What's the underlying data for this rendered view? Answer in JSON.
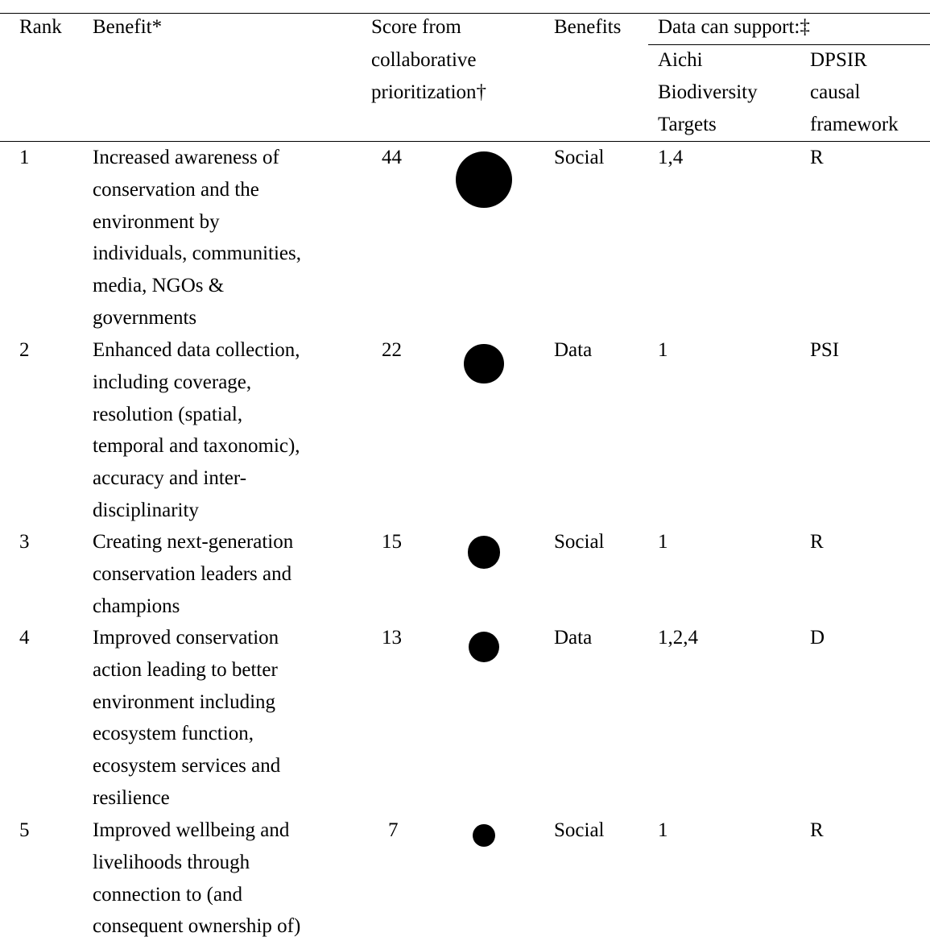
{
  "table": {
    "headers": {
      "rank": "Rank",
      "benefit": "Benefit*",
      "score": [
        "Score from",
        "collaborative",
        "prioritization†"
      ],
      "benefits": "Benefits",
      "support_group": "Data can support:‡",
      "aichi": [
        "Aichi",
        "Biodiversity",
        "Targets"
      ],
      "dpsir": [
        "DPSIR",
        "causal",
        "framework"
      ]
    },
    "rows": [
      {
        "rank": "1",
        "benefit": [
          "Increased awareness of",
          "conservation and the",
          "environment by",
          "individuals, communities,",
          "media, NGOs &",
          "governments"
        ],
        "score": 44,
        "benefits": "Social",
        "aichi": "1,4",
        "dpsir": "R"
      },
      {
        "rank": "2",
        "benefit": [
          "Enhanced data collection,",
          "including coverage,",
          "resolution (spatial,",
          "temporal and taxonomic),",
          "accuracy and inter-",
          "disciplinarity"
        ],
        "score": 22,
        "benefits": "Data",
        "aichi": "1",
        "dpsir": "PSI"
      },
      {
        "rank": "3",
        "benefit": [
          "Creating next-generation",
          "conservation leaders and",
          "champions"
        ],
        "score": 15,
        "benefits": "Social",
        "aichi": "1",
        "dpsir": "R"
      },
      {
        "rank": "4",
        "benefit": [
          "Improved conservation",
          "action leading to better",
          "environment including",
          "ecosystem function,",
          "ecosystem services and",
          "resilience"
        ],
        "score": 13,
        "benefits": "Data",
        "aichi": "1,2,4",
        "dpsir": "D"
      },
      {
        "rank": "5",
        "benefit": [
          "Improved wellbeing and",
          "livelihoods through",
          "connection to (and",
          "consequent ownership of)"
        ],
        "score": 7,
        "benefits": "Social",
        "aichi": "1",
        "dpsir": "R"
      }
    ]
  }
}
